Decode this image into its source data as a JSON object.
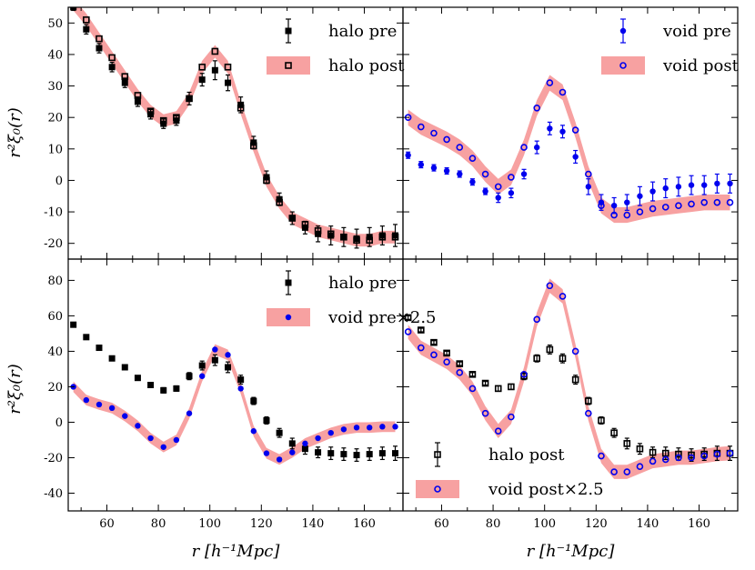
{
  "figure": {
    "xlabel": "r [h⁻¹Mpc]",
    "ylabel": "r²ξ₀(r)"
  },
  "chart_data": [
    {
      "panel": "top-left",
      "type": "scatter",
      "xlim": [
        45,
        175
      ],
      "ylim": [
        -25,
        55
      ],
      "xticks": [],
      "yticks": [
        -20,
        -10,
        0,
        10,
        20,
        30,
        40,
        50
      ],
      "legend_loc": "top-right",
      "series": [
        {
          "name": "halo pre",
          "style": "black-square-errorbar",
          "x": [
            47,
            52,
            57,
            62,
            67,
            72,
            77,
            82,
            87,
            92,
            97,
            102,
            107,
            112,
            117,
            122,
            127,
            132,
            137,
            142,
            147,
            152,
            157,
            162,
            167,
            172
          ],
          "y": [
            55,
            48,
            42,
            36,
            31,
            25,
            21,
            18,
            19,
            26,
            32,
            35,
            31,
            24,
            12,
            1,
            -6,
            -12,
            -15,
            -17,
            -17.5,
            -18,
            -18.5,
            -18,
            -17.5,
            -17.5
          ],
          "err": [
            1,
            1.5,
            1.5,
            1.5,
            1.5,
            1.5,
            1.5,
            1.5,
            1.5,
            2,
            2,
            3,
            2.5,
            2.5,
            2,
            2,
            2,
            2,
            2,
            2.5,
            3,
            3,
            3,
            3,
            3,
            3.5
          ]
        },
        {
          "name": "halo post",
          "style": "open-square-with-band",
          "x": [
            47,
            52,
            57,
            62,
            67,
            72,
            77,
            82,
            87,
            92,
            97,
            102,
            107,
            112,
            117,
            122,
            127,
            132,
            137,
            142,
            147,
            152,
            157,
            162,
            167,
            172
          ],
          "y": [
            56,
            51,
            45,
            39,
            33,
            27,
            22,
            19,
            20,
            26,
            36,
            41,
            36,
            23,
            11,
            0,
            -7,
            -12,
            -14,
            -16,
            -17,
            -18,
            -19,
            -19,
            -18,
            -18
          ],
          "band": 2
        }
      ]
    },
    {
      "panel": "top-right",
      "type": "scatter",
      "xlim": [
        45,
        175
      ],
      "ylim": [
        -25,
        55
      ],
      "xticks": [],
      "yticks": [],
      "legend_loc": "top-right",
      "series": [
        {
          "name": "void pre",
          "style": "blue-dot-errorbar",
          "x": [
            47,
            52,
            57,
            62,
            67,
            72,
            77,
            82,
            87,
            92,
            97,
            102,
            107,
            112,
            117,
            122,
            127,
            132,
            137,
            142,
            147,
            152,
            157,
            162,
            167,
            172
          ],
          "y": [
            8,
            5,
            4,
            3,
            2,
            -0.5,
            -3.5,
            -5.5,
            -4,
            2,
            10.5,
            16.5,
            15.5,
            7.5,
            -2,
            -7,
            -8,
            -7,
            -5,
            -3.5,
            -2.5,
            -2,
            -1.5,
            -1.5,
            -1,
            -1
          ],
          "err": [
            1,
            1,
            1,
            1,
            1,
            1,
            1,
            1.5,
            1.5,
            1.5,
            2,
            2,
            2,
            2,
            2.5,
            2.5,
            2.5,
            2.5,
            3,
            3,
            3,
            3,
            3,
            3,
            3,
            3
          ]
        },
        {
          "name": "void post",
          "style": "open-circle-with-band",
          "x": [
            47,
            52,
            57,
            62,
            67,
            72,
            77,
            82,
            87,
            92,
            97,
            102,
            107,
            112,
            117,
            122,
            127,
            132,
            137,
            142,
            147,
            152,
            157,
            162,
            167,
            172
          ],
          "y": [
            20,
            17,
            15,
            13,
            10.5,
            7,
            2,
            -2,
            1,
            10.5,
            23,
            31,
            28,
            16,
            2,
            -8,
            -11,
            -11,
            -10,
            -9,
            -8.5,
            -8,
            -7.5,
            -7,
            -7,
            -7
          ],
          "band": 2.5
        }
      ]
    },
    {
      "panel": "bottom-left",
      "type": "scatter",
      "xlim": [
        45,
        175
      ],
      "ylim": [
        -50,
        92
      ],
      "xticks": [
        60,
        80,
        100,
        120,
        140,
        160
      ],
      "yticks": [
        -40,
        -20,
        0,
        20,
        40,
        60,
        80
      ],
      "legend_loc": "top-right",
      "series": [
        {
          "name": "halo pre",
          "style": "black-square-errorbar",
          "x": [
            47,
            52,
            57,
            62,
            67,
            72,
            77,
            82,
            87,
            92,
            97,
            102,
            107,
            112,
            117,
            122,
            127,
            132,
            137,
            142,
            147,
            152,
            157,
            162,
            167,
            172
          ],
          "y": [
            55,
            48,
            42,
            36,
            31,
            25,
            21,
            18,
            19,
            26,
            32,
            35,
            31,
            24,
            12,
            1,
            -6,
            -12,
            -15,
            -17,
            -17.5,
            -18,
            -18.5,
            -18,
            -17.5,
            -17.5
          ],
          "err": [
            1,
            1,
            1,
            1,
            1,
            1,
            1,
            1.5,
            1.5,
            2,
            2.5,
            3,
            3,
            2.5,
            2,
            2,
            2.5,
            3,
            3,
            3,
            3.5,
            3.5,
            3.5,
            3.5,
            3.5,
            4
          ]
        },
        {
          "name": "void pre×2.5",
          "style": "blue-dot-with-band",
          "x": [
            47,
            52,
            57,
            62,
            67,
            72,
            77,
            82,
            87,
            92,
            97,
            102,
            107,
            112,
            117,
            122,
            127,
            132,
            137,
            142,
            147,
            152,
            157,
            162,
            167,
            172
          ],
          "y": [
            20,
            12.5,
            10,
            8,
            3.5,
            -2,
            -9,
            -14,
            -10,
            5,
            26,
            41,
            38,
            19,
            -5,
            -17.5,
            -21,
            -17,
            -12,
            -9,
            -6,
            -4,
            -3,
            -3,
            -2.5,
            -2.5
          ],
          "band": 3
        }
      ]
    },
    {
      "panel": "bottom-right",
      "type": "scatter",
      "xlim": [
        45,
        175
      ],
      "ylim": [
        -50,
        92
      ],
      "xticks": [
        60,
        80,
        100,
        120,
        140,
        160
      ],
      "yticks": [],
      "legend_loc": "bottom-left",
      "series": [
        {
          "name": "halo post",
          "style": "open-square-errorbar",
          "x": [
            47,
            52,
            57,
            62,
            67,
            72,
            77,
            82,
            87,
            92,
            97,
            102,
            107,
            112,
            117,
            122,
            127,
            132,
            137,
            142,
            147,
            152,
            157,
            162,
            167,
            172
          ],
          "y": [
            59,
            52,
            45,
            39,
            33,
            27,
            22,
            19,
            20,
            26,
            36,
            41,
            36,
            24,
            12,
            1,
            -6,
            -12,
            -15,
            -17,
            -17.5,
            -18,
            -18.5,
            -18,
            -17.5,
            -17.5
          ],
          "err": [
            1,
            1,
            1,
            1,
            1,
            1,
            1,
            1.5,
            1.5,
            2,
            2,
            2.5,
            2.5,
            2.5,
            2,
            2,
            2.5,
            3,
            3,
            3,
            3.5,
            3.5,
            3.5,
            3.5,
            4,
            4
          ]
        },
        {
          "name": "void post×2.5",
          "style": "open-circle-with-band",
          "x": [
            47,
            52,
            57,
            62,
            67,
            72,
            77,
            82,
            87,
            92,
            97,
            102,
            107,
            112,
            117,
            122,
            127,
            132,
            137,
            142,
            147,
            152,
            157,
            162,
            167,
            172
          ],
          "y": [
            51,
            42,
            38,
            34,
            28,
            19,
            5,
            -5,
            3,
            27,
            58,
            77,
            71,
            40,
            5,
            -19,
            -28,
            -28,
            -25,
            -22,
            -21,
            -20,
            -20,
            -19,
            -18,
            -17.5
          ],
          "band": 4
        }
      ]
    }
  ]
}
